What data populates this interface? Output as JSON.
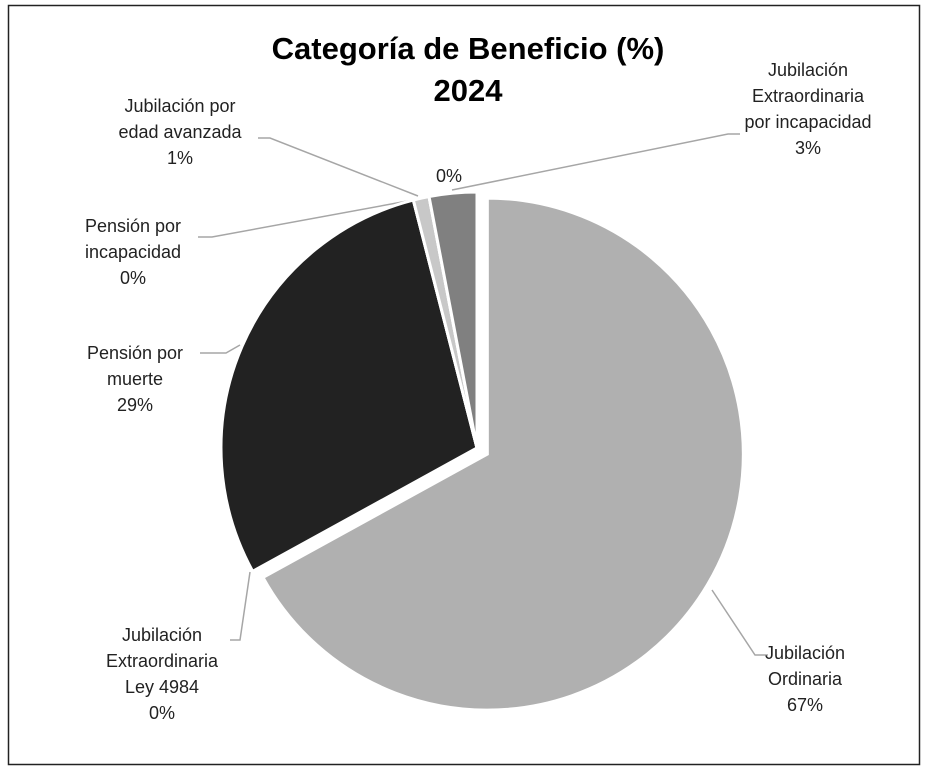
{
  "chart_data": {
    "type": "pie",
    "title": "Categoría de Beneficio (%)\n2024",
    "categories": [
      "Jubilación\nOrdinaria",
      "Jubilación\nExtraordinaria\nLey 4984",
      "Pensión por\nmuerte",
      "Pensión por\nincapacidad",
      "Jubilación por\nedad avanzada",
      null,
      "Jubilación\nExtraordinaria\npor incapacidad"
    ],
    "values": [
      67,
      0,
      29,
      0,
      1,
      0,
      3
    ],
    "value_labels": [
      "67%",
      "0%",
      "29%",
      "0%",
      "1%",
      "0%",
      "3%"
    ],
    "colors": [
      "#b0b0b0",
      "#d9d9d9",
      "#222222",
      "#595959",
      "#c8c8c8",
      "#a5a5a5",
      "#808080"
    ],
    "exploded": [
      0
    ]
  }
}
